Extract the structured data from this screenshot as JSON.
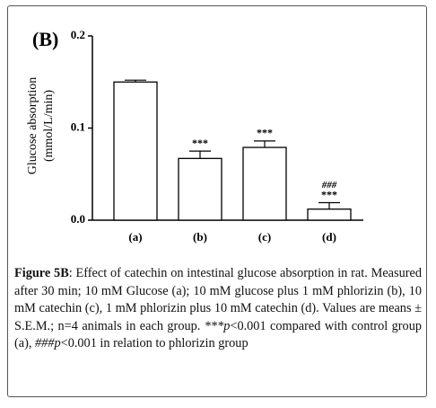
{
  "chart_data": {
    "type": "bar",
    "panel_label": "(B)",
    "ylabel": [
      "Glucose absorption",
      "(mmol/L/min)"
    ],
    "categories": [
      "(a)",
      "(b)",
      "(c)",
      "(d)"
    ],
    "values": [
      0.15,
      0.067,
      0.079,
      0.012
    ],
    "errors": [
      0.002,
      0.008,
      0.007,
      0.007
    ],
    "vs_control": [
      null,
      "***",
      "***",
      "***"
    ],
    "vs_phlorizin": [
      null,
      null,
      null,
      "###"
    ],
    "color": "#ffffff",
    "ylim": [
      0,
      0.2
    ],
    "yticks": [
      {
        "value": 0,
        "label": "0.0"
      },
      0.1,
      0.2
    ]
  },
  "caption": [
    "Figure 5B",
    ": Effect of catechin on intestinal glucose absorption in rat. Measured after 30 min; 10 mM Glucose (a); 10 mM glucose plus 1 mM phlorizin (b), 10 mM catechin (c), 1 mM phlorizin plus 10 mM catechin (d). Values are means ± S.E.M.; n=4 animals in each group. ",
    "***p",
    "<0.001 compared with control group (a), ",
    "###p",
    "<0.001 in relation to phlorizin group"
  ]
}
